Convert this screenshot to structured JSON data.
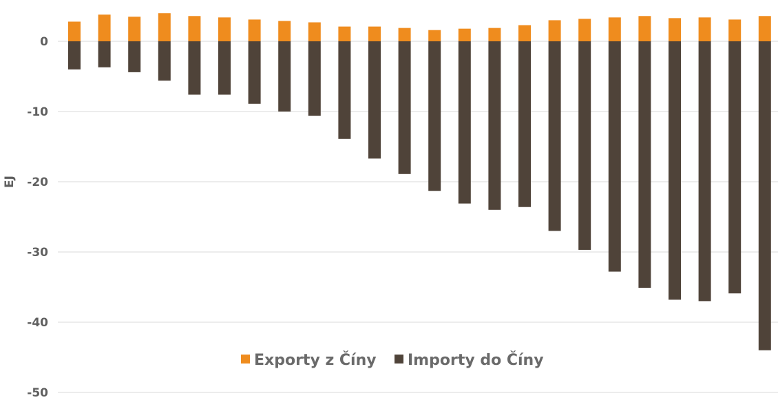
{
  "chart_data": {
    "type": "bar",
    "stacked": true,
    "title": "",
    "xlabel": "",
    "ylabel": "EJ",
    "ylim": [
      -50,
      5
    ],
    "yticks": [
      0,
      -10,
      -20,
      -30,
      -40,
      -50
    ],
    "grid": true,
    "legend_position": "bottom-center",
    "x_tick_labels_note": "Year tick labels are cut off at the bottom edge of the image",
    "series": [
      {
        "name": "Exporty z Číny",
        "color": "#ef8c1e",
        "values": [
          2.8,
          3.8,
          3.5,
          4.0,
          3.6,
          3.4,
          3.1,
          2.9,
          2.7,
          2.1,
          2.1,
          1.9,
          1.6,
          1.8,
          1.9,
          2.3,
          3.0,
          3.2,
          3.4,
          3.6,
          3.3,
          3.4,
          3.1,
          3.6
        ]
      },
      {
        "name": "Importy do Číny",
        "color": "#4f4339",
        "values": [
          -4.0,
          -3.7,
          -4.4,
          -5.6,
          -7.6,
          -7.6,
          -8.9,
          -10.0,
          -10.6,
          -13.9,
          -16.7,
          -18.9,
          -21.3,
          -23.1,
          -24.0,
          -23.6,
          -27.0,
          -29.7,
          -32.8,
          -35.1,
          -36.8,
          -37.0,
          -35.9,
          -44.0
        ]
      }
    ]
  }
}
